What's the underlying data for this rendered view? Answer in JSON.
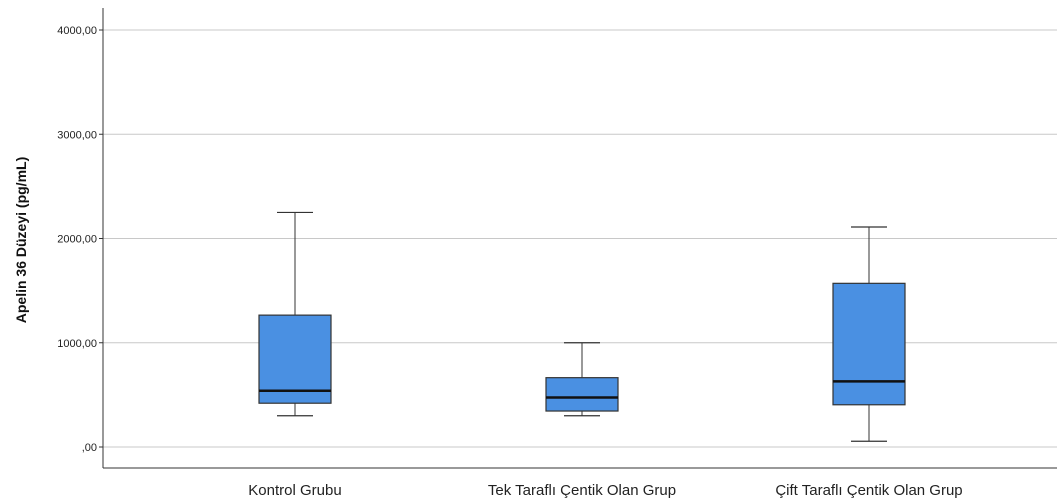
{
  "chart_data": {
    "type": "boxplot",
    "ylabel": "Apelin 36 Düzeyi (pg/mL)",
    "ylim": [
      -200,
      4200
    ],
    "yticks": [
      0,
      1000,
      2000,
      3000,
      4000
    ],
    "ytick_labels": [
      ",00",
      "1000,00",
      "2000,00",
      "3000,00",
      "4000,00"
    ],
    "grid": true,
    "box_color": "#4a90e2",
    "categories": [
      "Kontrol Grubu",
      "Tek Taraflı Çentik Olan Grup",
      "Çift Taraflı Çentik Olan Grup"
    ],
    "boxes": [
      {
        "min": 300,
        "q1": 420,
        "median": 540,
        "q3": 1265,
        "max": 2250
      },
      {
        "min": 300,
        "q1": 345,
        "median": 475,
        "q3": 665,
        "max": 1000
      },
      {
        "min": 55,
        "q1": 405,
        "median": 630,
        "q3": 1570,
        "max": 2110
      }
    ]
  }
}
